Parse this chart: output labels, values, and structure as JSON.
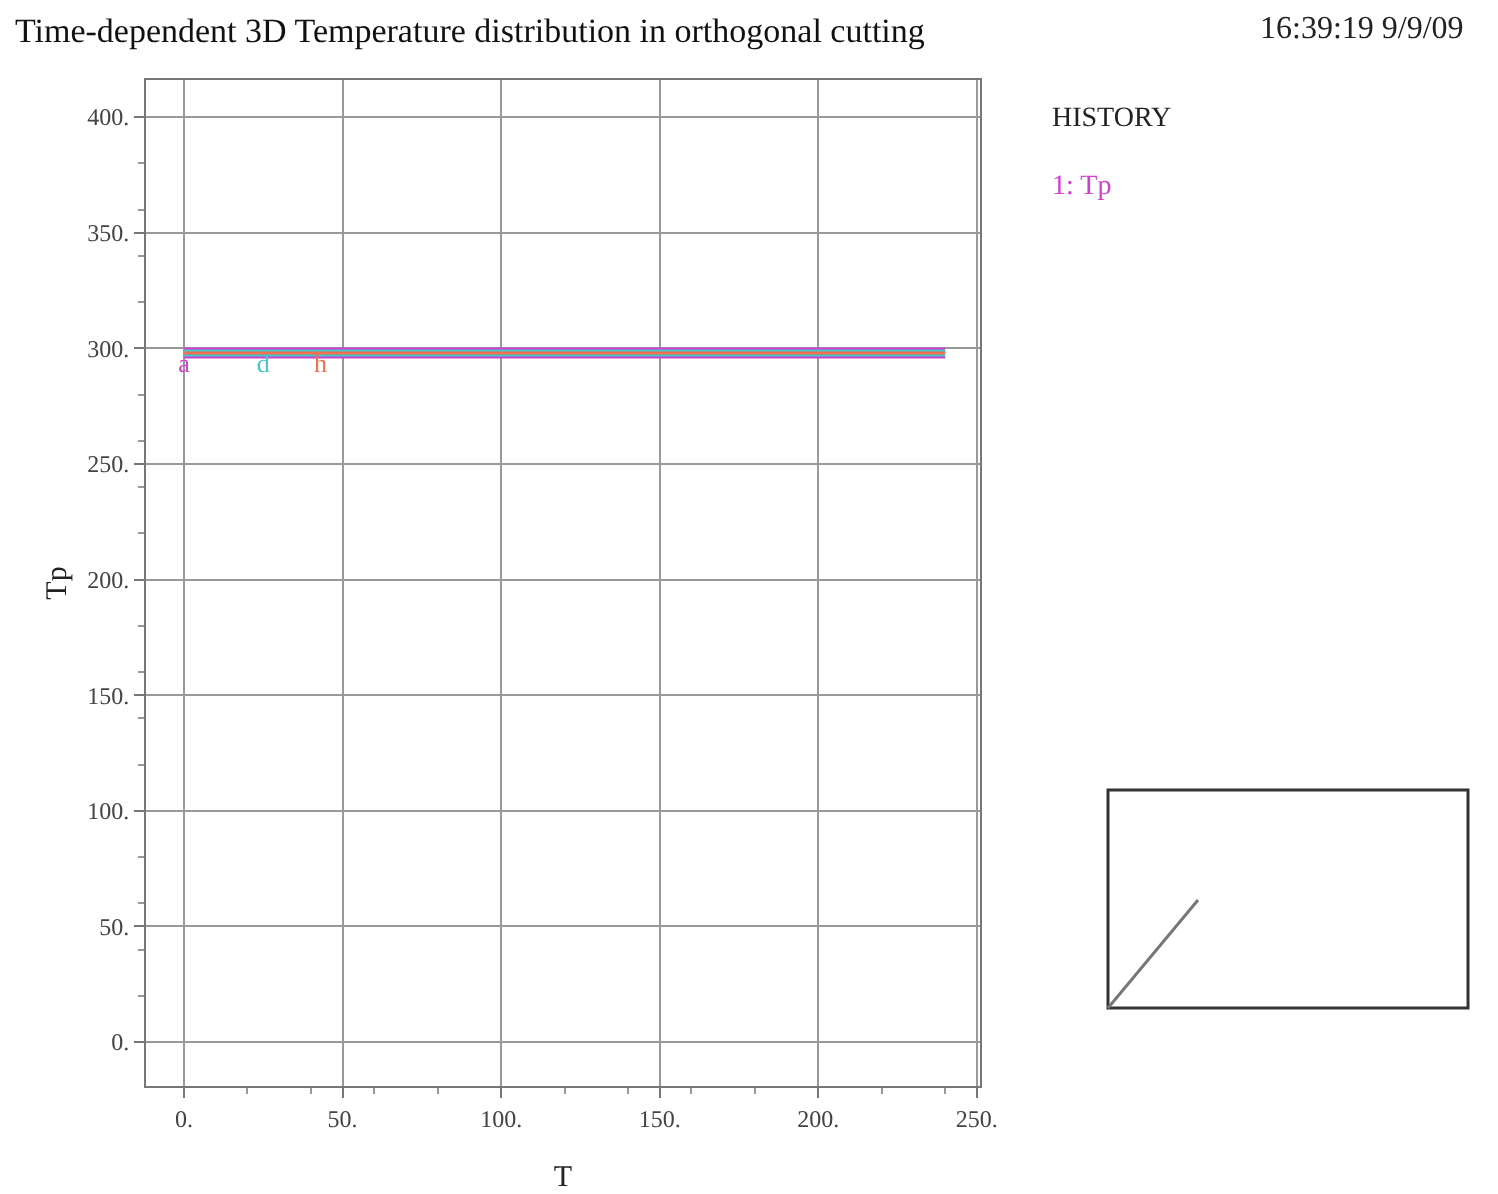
{
  "chart_data": {
    "type": "line",
    "title": "Time-dependent 3D Temperature distribution in orthogonal cutting",
    "xlabel": "T",
    "ylabel": "Tp",
    "xlim": [
      -12,
      251
    ],
    "xticks": [
      {
        "value": 0,
        "label": "0."
      },
      {
        "value": 50,
        "label": "50."
      },
      {
        "value": 100,
        "label": "100."
      },
      {
        "value": 150,
        "label": "150."
      },
      {
        "value": 200,
        "label": "200."
      },
      {
        "value": 250,
        "label": "250."
      }
    ],
    "ylim": [
      -19,
      416
    ],
    "yticks": [
      {
        "value": 0,
        "label": "0."
      },
      {
        "value": 50,
        "label": "50."
      },
      {
        "value": 100,
        "label": "100."
      },
      {
        "value": 150,
        "label": "150."
      },
      {
        "value": 200,
        "label": "200."
      },
      {
        "value": 250,
        "label": "250."
      },
      {
        "value": 300,
        "label": "300."
      },
      {
        "value": 350,
        "label": "350."
      },
      {
        "value": 400,
        "label": "400."
      }
    ],
    "grid": true,
    "legend": false,
    "marker": "none",
    "line_style": "solid",
    "series": [
      {
        "name": "a",
        "color": "#d040d0",
        "x": [
          0,
          0,
          240
        ],
        "values": [
          298,
          298,
          298
        ]
      },
      {
        "name": "d",
        "color": "#40c8c8",
        "x": [
          0,
          25,
          240
        ],
        "values": [
          298,
          298,
          298
        ]
      },
      {
        "name": "h",
        "color": "#f07050",
        "x": [
          0,
          43,
          240
        ],
        "values": [
          298,
          298,
          298
        ]
      }
    ],
    "annotations": [
      "16:39:19 9/9/09",
      "HISTORY",
      "1: Tp"
    ]
  }
}
